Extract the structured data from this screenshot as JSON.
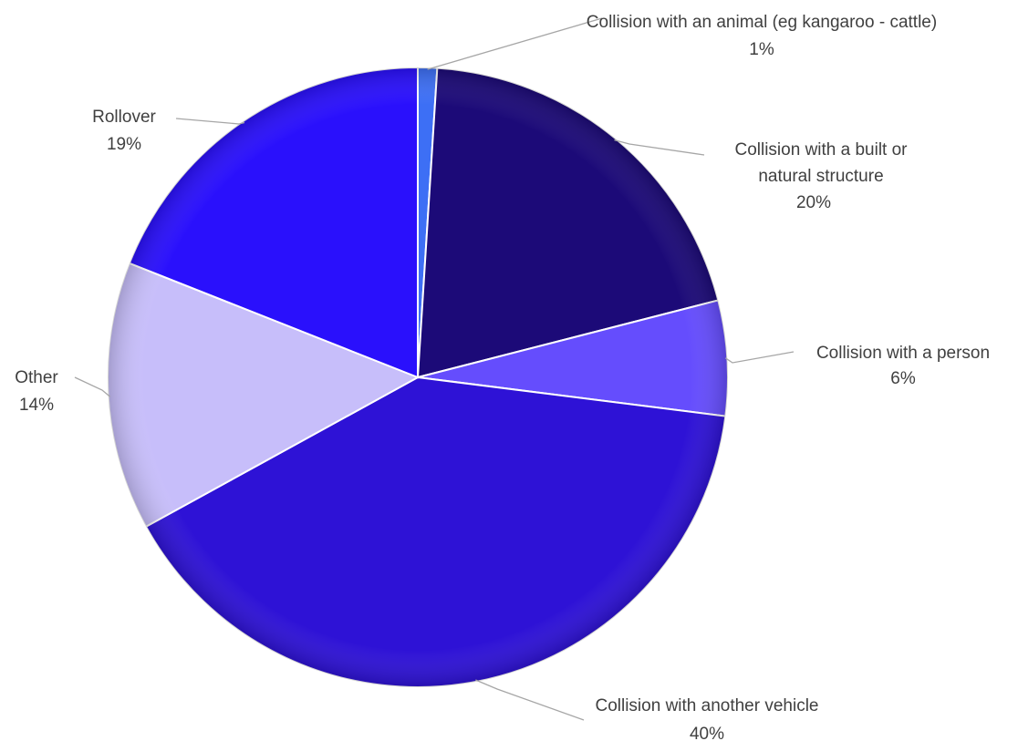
{
  "chart_data": {
    "type": "pie",
    "start_angle_deg": 0,
    "direction": "clockwise",
    "slices": [
      {
        "label": [
          "Collision with an animal (eg kangaroo - cattle)"
        ],
        "value": 1,
        "value_label": "1%",
        "color": "#3d6ff5"
      },
      {
        "label": [
          "Collision with a built or",
          "natural structure"
        ],
        "value": 20,
        "value_label": "20%",
        "color": "#1c0a78"
      },
      {
        "label": [
          "Collision with a person"
        ],
        "value": 6,
        "value_label": "6%",
        "color": "#654dfd"
      },
      {
        "label": [
          "Collision with another vehicle"
        ],
        "value": 40,
        "value_label": "40%",
        "color": "#2e12d6"
      },
      {
        "label": [
          "Other"
        ],
        "value": 14,
        "value_label": "14%",
        "color": "#c7befa"
      },
      {
        "label": [
          "Rollover"
        ],
        "value": 19,
        "value_label": "19%",
        "color": "#2a10fc"
      }
    ],
    "legend": "none",
    "data_labels": "outside with leader lines"
  }
}
